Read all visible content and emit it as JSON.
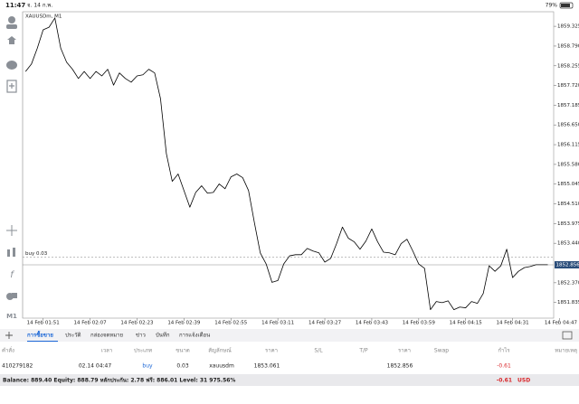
{
  "status_bar": {
    "time": "11:47",
    "date": "จ. 14 ก.พ.",
    "battery": "79%"
  },
  "sidebar": {
    "timeframe": "M1"
  },
  "chart_data": {
    "type": "line",
    "title": "XAUUSDm, M1",
    "x": [
      "01:45",
      "01:47",
      "01:49",
      "01:51",
      "01:53",
      "01:55",
      "01:57",
      "01:59",
      "02:01",
      "02:03",
      "02:05",
      "02:07",
      "02:09",
      "02:11",
      "02:13",
      "02:15",
      "02:17",
      "02:19",
      "02:21",
      "02:23",
      "02:25",
      "02:27",
      "02:29",
      "02:31",
      "02:33",
      "02:35",
      "02:37",
      "02:39",
      "02:41",
      "02:43",
      "02:45",
      "02:47",
      "02:49",
      "02:51",
      "02:53",
      "02:55",
      "02:57",
      "02:59",
      "03:01",
      "03:03",
      "03:05",
      "03:07",
      "03:09",
      "03:11",
      "03:13",
      "03:15",
      "03:17",
      "03:19",
      "03:21",
      "03:23",
      "03:25",
      "03:27",
      "03:29",
      "03:31",
      "03:33",
      "03:35",
      "03:37",
      "03:39",
      "03:41",
      "03:43",
      "03:45",
      "03:47",
      "03:49",
      "03:51",
      "03:53",
      "03:55",
      "03:57",
      "03:59",
      "04:01",
      "04:03",
      "04:05",
      "04:07",
      "04:09",
      "04:11",
      "04:13",
      "04:15",
      "04:17",
      "04:19",
      "04:21",
      "04:23",
      "04:25",
      "04:27",
      "04:29",
      "04:31",
      "04:33",
      "04:35",
      "04:37",
      "04:39",
      "04:41",
      "04:43"
    ],
    "series": [
      {
        "name": "XAUUSDm",
        "color": "#000000",
        "values": [
          1858.1,
          1858.3,
          1858.73,
          1859.23,
          1859.3,
          1859.55,
          1858.73,
          1858.35,
          1858.16,
          1857.91,
          1858.1,
          1857.91,
          1858.1,
          1857.98,
          1858.16,
          1857.73,
          1858.06,
          1857.91,
          1857.81,
          1857.98,
          1858.01,
          1858.16,
          1858.06,
          1857.36,
          1855.87,
          1855.12,
          1855.32,
          1854.87,
          1854.42,
          1854.82,
          1855.0,
          1854.8,
          1854.82,
          1855.05,
          1854.92,
          1855.24,
          1855.32,
          1855.22,
          1854.87,
          1854.0,
          1853.18,
          1852.88,
          1852.38,
          1852.43,
          1852.88,
          1853.1,
          1853.13,
          1853.13,
          1853.3,
          1853.23,
          1853.18,
          1852.93,
          1853.03,
          1853.43,
          1853.88,
          1853.58,
          1853.48,
          1853.28,
          1853.5,
          1853.83,
          1853.48,
          1853.2,
          1853.18,
          1853.13,
          1853.43,
          1853.55,
          1853.23,
          1852.88,
          1852.76,
          1851.64,
          1851.86,
          1851.83,
          1851.88,
          1851.64,
          1851.71,
          1851.69,
          1851.86,
          1851.81,
          1852.08,
          1852.83,
          1852.68,
          1852.83,
          1853.28,
          1852.51,
          1852.68,
          1852.78,
          1852.81,
          1852.86,
          1852.86,
          1852.86
        ]
      }
    ],
    "xlim": [
      "01:44",
      "04:45"
    ],
    "xticks": [
      {
        "value": "01:51",
        "label": "14 Feb 01:51"
      },
      {
        "value": "02:07",
        "label": "14 Feb 02:07"
      },
      {
        "value": "02:23",
        "label": "14 Feb 02:23"
      },
      {
        "value": "02:39",
        "label": "14 Feb 02:39"
      },
      {
        "value": "02:55",
        "label": "14 Feb 02:55"
      },
      {
        "value": "03:11",
        "label": "14 Feb 03:11"
      },
      {
        "value": "03:27",
        "label": "14 Feb 03:27"
      },
      {
        "value": "03:43",
        "label": "14 Feb 03:43"
      },
      {
        "value": "03:59",
        "label": "14 Feb 03:59"
      },
      {
        "value": "04:15",
        "label": "14 Feb 04:15"
      },
      {
        "value": "04:31",
        "label": "14 Feb 04:31"
      },
      {
        "value": "04:47",
        "label": "14 Feb 04:47"
      }
    ],
    "ylim": [
      1851.41,
      1859.72
    ],
    "yticks": [
      1859.325,
      {
        "value": 1858.79,
        "label": "1858.790"
      },
      1858.255,
      {
        "value": 1857.72,
        "label": "1857.720"
      },
      1857.185,
      {
        "value": 1856.65,
        "label": "1856.650"
      },
      1856.115,
      {
        "value": 1855.58,
        "label": "1855.580"
      },
      1855.045,
      {
        "value": 1854.51,
        "label": "1854.510"
      },
      1853.975,
      {
        "value": 1853.44,
        "label": "1853.440"
      },
      {
        "value": 1852.37,
        "label": "1852.370"
      },
      1851.835
    ],
    "position_line": {
      "label": "buy 0.03",
      "value": 1853.061
    },
    "price_line": {
      "value": 1852.856,
      "label": "1852.856"
    }
  },
  "tabs": [
    "การซื้อขาย",
    "ประวัติ",
    "กล่องจดหมาย",
    "ข่าว",
    "บันทึก",
    "การแจ้งเตือน"
  ],
  "table": {
    "columns": {
      "order": "คำสั่ง",
      "time": "เวลา",
      "type": "ประเภท",
      "size": "ขนาด",
      "symbol": "สัญลักษณ์",
      "price": "ราคา",
      "sl": "S/L",
      "tp": "T/P",
      "current": "ราคา",
      "swap": "Swap",
      "profit": "กำไร",
      "comment": "หมายเหตุ"
    },
    "rows": [
      {
        "order": "410279182",
        "time": "02.14 04:47",
        "type": "buy",
        "size": "0.03",
        "symbol": "xauusdm",
        "price": "1853.061",
        "current": "1852.856",
        "profit": "-0.61"
      }
    ]
  },
  "footer": {
    "summary": "Balance: 889.40 Equity: 888.79 หลักประกัน: 2.78 ฟรี: 886.01 Level: 31 975.56%",
    "profit": "-0.61",
    "currency": "USD"
  }
}
